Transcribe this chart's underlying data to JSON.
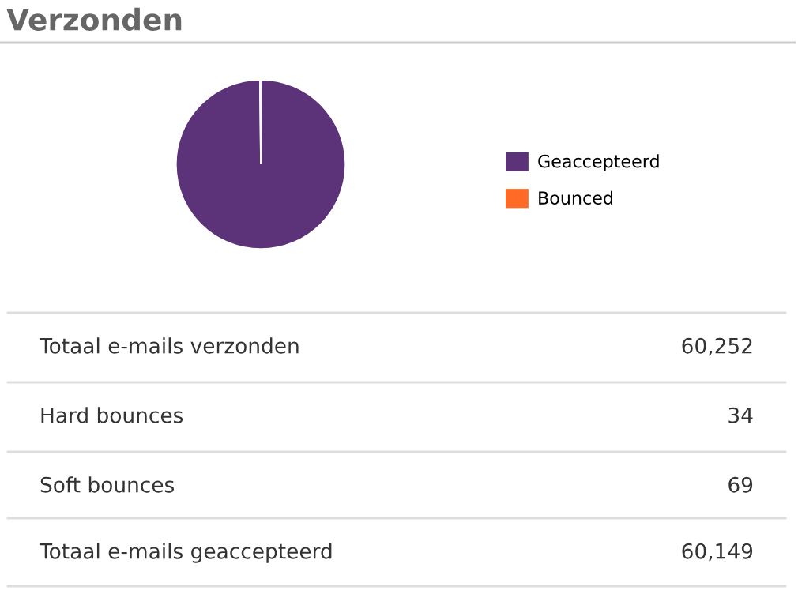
{
  "chart_data": {
    "type": "pie",
    "title": "Verzonden",
    "categories": [
      "Geaccepteerd",
      "Bounced"
    ],
    "values": [
      99.83,
      0.17
    ],
    "colors": [
      "#5c3378",
      "#ff6b26"
    ],
    "legend": "right",
    "annotations": [
      "Totaal e-mails verzonden",
      "60,252",
      "Hard bounces",
      "34",
      "Soft bounces",
      "69",
      "Totaal e-mails geaccepteerd",
      "60,149"
    ]
  }
}
